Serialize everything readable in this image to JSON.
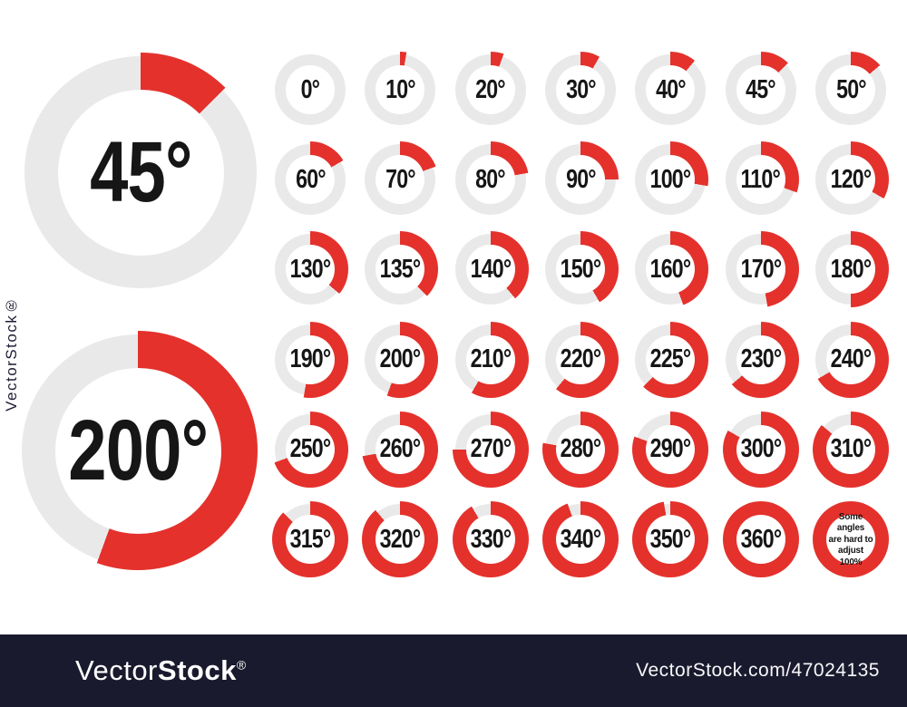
{
  "colors": {
    "red": "#e4312c",
    "track_gray": "#e9e9e9",
    "background": "#ffffff",
    "watermark_bar": "#1a1a2e",
    "label_black": "#161616",
    "watermark_text": "#ffffff"
  },
  "featured": [
    {
      "label": "45°",
      "value": 45
    },
    {
      "label": "200°",
      "value": 200
    }
  ],
  "grid": {
    "rows": [
      [
        {
          "label": "0°",
          "value": 0
        },
        {
          "label": "10°",
          "value": 10
        },
        {
          "label": "20°",
          "value": 20
        },
        {
          "label": "30°",
          "value": 30
        },
        {
          "label": "40°",
          "value": 40
        },
        {
          "label": "45°",
          "value": 45
        },
        {
          "label": "50°",
          "value": 50
        }
      ],
      [
        {
          "label": "60°",
          "value": 60
        },
        {
          "label": "70°",
          "value": 70
        },
        {
          "label": "80°",
          "value": 80
        },
        {
          "label": "90°",
          "value": 90
        },
        {
          "label": "100°",
          "value": 100
        },
        {
          "label": "110°",
          "value": 110
        },
        {
          "label": "120°",
          "value": 120
        }
      ],
      [
        {
          "label": "130°",
          "value": 130
        },
        {
          "label": "135°",
          "value": 135
        },
        {
          "label": "140°",
          "value": 140
        },
        {
          "label": "150°",
          "value": 150
        },
        {
          "label": "160°",
          "value": 160
        },
        {
          "label": "170°",
          "value": 170
        },
        {
          "label": "180°",
          "value": 180
        }
      ],
      [
        {
          "label": "190°",
          "value": 190
        },
        {
          "label": "200°",
          "value": 200
        },
        {
          "label": "210°",
          "value": 210
        },
        {
          "label": "220°",
          "value": 220
        },
        {
          "label": "225°",
          "value": 225
        },
        {
          "label": "230°",
          "value": 230
        },
        {
          "label": "240°",
          "value": 240
        }
      ],
      [
        {
          "label": "250°",
          "value": 250
        },
        {
          "label": "260°",
          "value": 260
        },
        {
          "label": "270°",
          "value": 270
        },
        {
          "label": "280°",
          "value": 280
        },
        {
          "label": "290°",
          "value": 290
        },
        {
          "label": "300°",
          "value": 300
        },
        {
          "label": "310°",
          "value": 310
        }
      ],
      [
        {
          "label": "315°",
          "value": 315
        },
        {
          "label": "320°",
          "value": 320
        },
        {
          "label": "330°",
          "value": 330
        },
        {
          "label": "340°",
          "value": 340
        },
        {
          "label": "350°",
          "value": 350
        },
        {
          "label": "360°",
          "value": 360
        }
      ]
    ]
  },
  "note_cell": {
    "value": 360,
    "text": "Some angles are hard to adjust 100%",
    "lines": [
      "Some angles",
      "are hard to",
      "adjust 100%"
    ]
  },
  "watermark": {
    "side_text": "VectorStock®",
    "logo": {
      "vector": "Vector",
      "stock": "Stock",
      "registered": "®"
    },
    "url": "VectorStock.com/47024135"
  },
  "chart_data": {
    "type": "pie",
    "title": "Set of circle angle diagrams from 0 to 360 degrees",
    "unit": "degrees",
    "start_angle": 0,
    "direction": "clockwise",
    "featured_values": [
      45,
      200
    ],
    "grid_values": [
      0,
      10,
      20,
      30,
      40,
      45,
      50,
      60,
      70,
      80,
      90,
      100,
      110,
      120,
      130,
      135,
      140,
      150,
      160,
      170,
      180,
      190,
      200,
      210,
      220,
      225,
      230,
      240,
      250,
      260,
      270,
      280,
      290,
      300,
      310,
      315,
      320,
      330,
      340,
      350,
      360
    ],
    "annotation": "Some angles are hard to adjust 100%",
    "legend_position": "none",
    "grid_on": false
  }
}
